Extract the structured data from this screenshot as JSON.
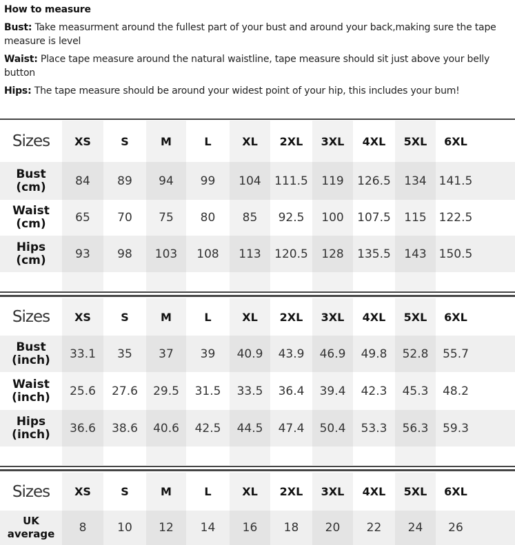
{
  "intro": {
    "title": "How to measure",
    "items": [
      {
        "label": "Bust:",
        "text": " Take measurment around the fullest part of your bust and around your back,making sure the tape measure is level"
      },
      {
        "label": "Waist:",
        "text": " Place tape measure around the natural waistline, tape measure should sit just above your belly button"
      },
      {
        "label": "Hips:",
        "text": " The tape measure should be around your widest point of your hip, this includes your bum!"
      }
    ]
  },
  "sizes_label": "Sizes",
  "sizes": [
    "XS",
    "S",
    "M",
    "L",
    "XL",
    "2XL",
    "3XL",
    "4XL",
    "5XL",
    "6XL"
  ],
  "cm": {
    "rows": [
      {
        "label1": "Bust",
        "label2": "(cm)",
        "values": [
          "84",
          "89",
          "94",
          "99",
          "104",
          "111.5",
          "119",
          "126.5",
          "134",
          "141.5"
        ]
      },
      {
        "label1": "Waist",
        "label2": "(cm)",
        "values": [
          "65",
          "70",
          "75",
          "80",
          "85",
          "92.5",
          "100",
          "107.5",
          "115",
          "122.5"
        ]
      },
      {
        "label1": "Hips",
        "label2": "(cm)",
        "values": [
          "93",
          "98",
          "103",
          "108",
          "113",
          "120.5",
          "128",
          "135.5",
          "143",
          "150.5"
        ]
      }
    ]
  },
  "inch": {
    "rows": [
      {
        "label1": "Bust",
        "label2": "(inch)",
        "values": [
          "33.1",
          "35",
          "37",
          "39",
          "40.9",
          "43.9",
          "46.9",
          "49.8",
          "52.8",
          "55.7"
        ]
      },
      {
        "label1": "Waist",
        "label2": "(inch)",
        "values": [
          "25.6",
          "27.6",
          "29.5",
          "31.5",
          "33.5",
          "36.4",
          "39.4",
          "42.3",
          "45.3",
          "48.2"
        ]
      },
      {
        "label1": "Hips",
        "label2": "(inch)",
        "values": [
          "36.6",
          "38.6",
          "40.6",
          "42.5",
          "44.5",
          "47.4",
          "50.4",
          "53.3",
          "56.3",
          "59.3"
        ]
      }
    ]
  },
  "uk": {
    "rows": [
      {
        "label1": "UK",
        "label2": "average",
        "values": [
          "8",
          "10",
          "12",
          "14",
          "16",
          "18",
          "20",
          "22",
          "24",
          "26"
        ]
      }
    ]
  }
}
